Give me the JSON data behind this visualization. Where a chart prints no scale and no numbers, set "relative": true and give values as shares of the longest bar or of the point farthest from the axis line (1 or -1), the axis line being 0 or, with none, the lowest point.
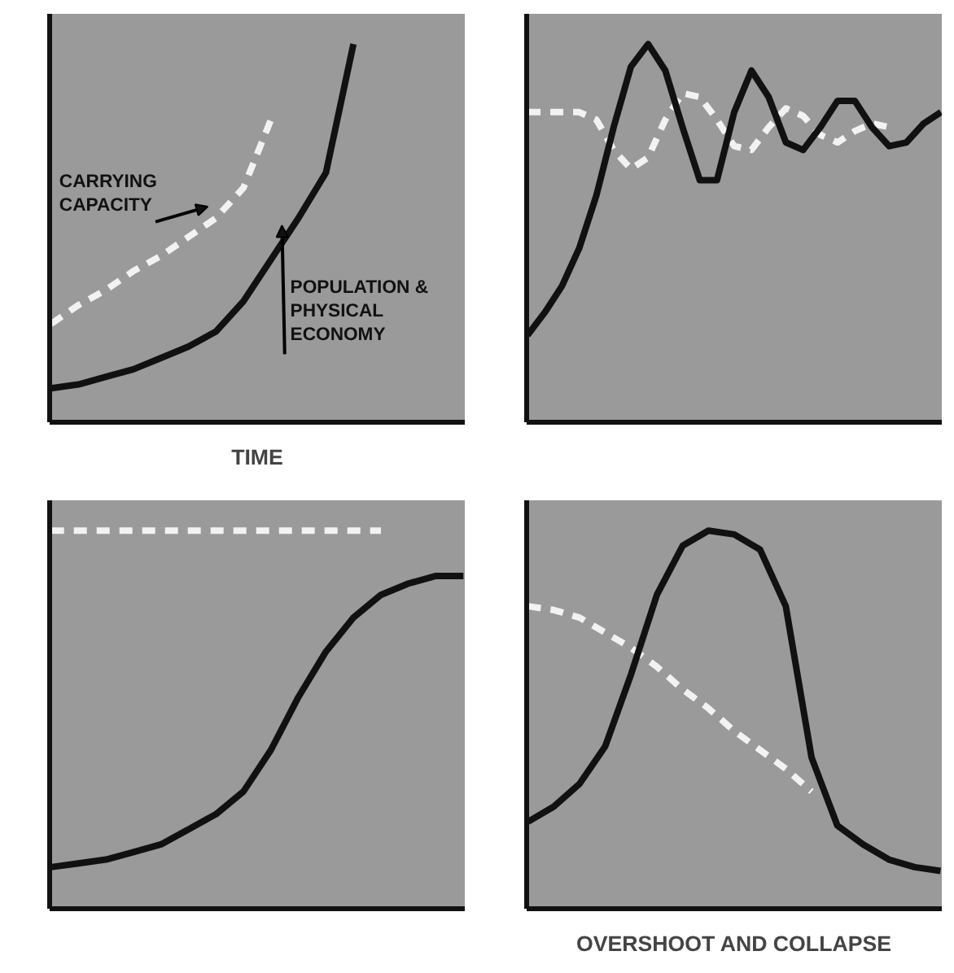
{
  "chart_data": [
    {
      "type": "line",
      "relative": true,
      "xlabel": "TIME",
      "categories": [
        null,
        null,
        null,
        null,
        null,
        null,
        null,
        null,
        null,
        null,
        null,
        null,
        null,
        null,
        null,
        null
      ],
      "series": [
        {
          "name": "CARRYING CAPACITY",
          "color": "#f2f2f2",
          "line_style": "dashed",
          "values": [
            0.26,
            0.31,
            0.35,
            0.4,
            0.44,
            0.49,
            0.54,
            0.62,
            0.8,
            null,
            null,
            null,
            null,
            null,
            null,
            null
          ]
        },
        {
          "name": "POPULATION & PHYSICAL ECONOMY",
          "color": "#111111",
          "line_style": "solid",
          "values": [
            0.09,
            0.1,
            0.12,
            0.14,
            0.17,
            0.2,
            0.24,
            0.32,
            0.43,
            0.54,
            0.66,
            1.0,
            null,
            null,
            null,
            null
          ]
        }
      ]
    },
    {
      "type": "line",
      "relative": true,
      "categories": [
        null,
        null,
        null,
        null,
        null,
        null,
        null,
        null,
        null,
        null,
        null,
        null,
        null,
        null,
        null,
        null,
        null,
        null,
        null,
        null,
        null,
        null,
        null,
        null,
        null
      ],
      "series": [
        {
          "color": "#f2f2f2",
          "line_style": "dashed",
          "values": [
            0.82,
            0.82,
            0.82,
            0.82,
            0.8,
            0.72,
            0.67,
            0.7,
            0.8,
            0.87,
            0.86,
            0.8,
            0.73,
            0.72,
            0.78,
            0.83,
            0.81,
            0.76,
            0.74,
            0.77,
            0.79,
            0.78,
            null,
            null,
            null
          ]
        },
        {
          "color": "#111111",
          "line_style": "solid",
          "values": [
            0.23,
            0.29,
            0.36,
            0.46,
            0.6,
            0.78,
            0.94,
            1.0,
            0.93,
            0.78,
            0.64,
            0.64,
            0.82,
            0.93,
            0.86,
            0.74,
            0.72,
            0.78,
            0.85,
            0.85,
            0.78,
            0.73,
            0.74,
            0.79,
            0.82
          ]
        }
      ]
    },
    {
      "type": "line",
      "relative": true,
      "categories": [
        null,
        null,
        null,
        null,
        null,
        null,
        null,
        null,
        null,
        null,
        null,
        null,
        null,
        null,
        null,
        null
      ],
      "series": [
        {
          "color": "#f2f2f2",
          "line_style": "dashed",
          "values": [
            1.0,
            1.0,
            1.0,
            1.0,
            1.0,
            1.0,
            1.0,
            1.0,
            1.0,
            1.0,
            1.0,
            1.0,
            1.0,
            null,
            null,
            null
          ]
        },
        {
          "color": "#111111",
          "line_style": "solid",
          "values": [
            0.11,
            0.12,
            0.13,
            0.15,
            0.17,
            0.21,
            0.25,
            0.31,
            0.42,
            0.56,
            0.68,
            0.77,
            0.83,
            0.86,
            0.88,
            0.88
          ]
        }
      ]
    },
    {
      "type": "line",
      "relative": true,
      "xlabel": "OVERSHOOT AND COLLAPSE",
      "categories": [
        null,
        null,
        null,
        null,
        null,
        null,
        null,
        null,
        null,
        null,
        null,
        null,
        null,
        null,
        null,
        null,
        null
      ],
      "series": [
        {
          "color": "#f2f2f2",
          "line_style": "dashed",
          "values": [
            0.8,
            0.79,
            0.77,
            0.73,
            0.69,
            0.64,
            0.58,
            0.53,
            0.47,
            0.42,
            0.37,
            0.31,
            null,
            null,
            null,
            null,
            null
          ]
        },
        {
          "color": "#111111",
          "line_style": "solid",
          "values": [
            0.23,
            0.27,
            0.33,
            0.43,
            0.62,
            0.83,
            0.96,
            1.0,
            0.99,
            0.95,
            0.8,
            0.4,
            0.22,
            0.17,
            0.13,
            0.11,
            0.1
          ]
        }
      ]
    }
  ]
}
